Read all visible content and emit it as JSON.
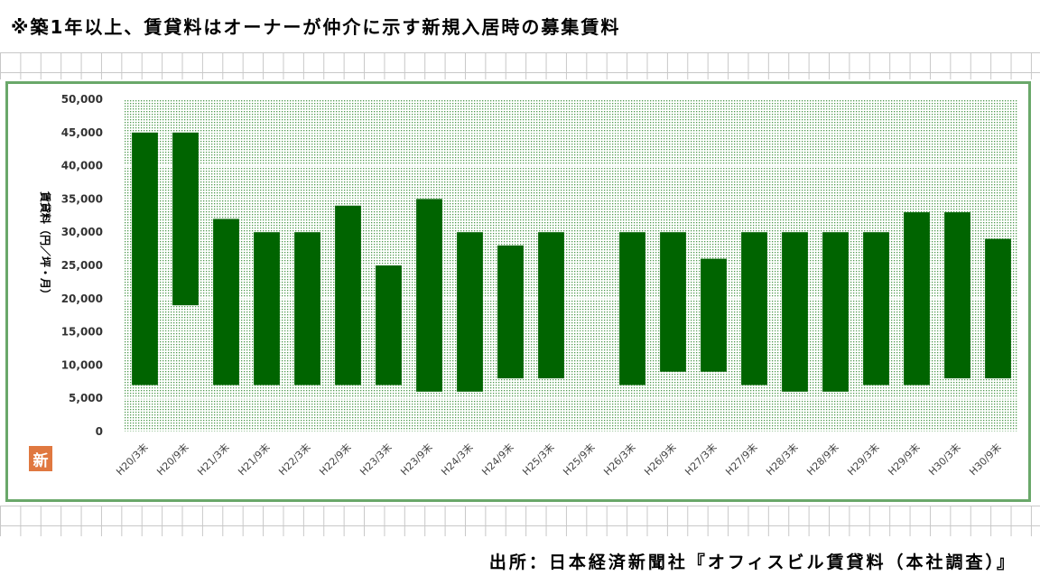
{
  "header": {
    "note": "※築1年以上、賃貸料はオーナーが仲介に示す新規入居時の募集賃料"
  },
  "footer": {
    "source": "出所：日本経済新聞社『オフィスビル賃貸料（本社調査）』"
  },
  "logo": {
    "text": "新"
  },
  "colors": {
    "bar": "#006400",
    "frame": "#6aa86a",
    "plot_dots": "#4f9a4f"
  },
  "chart_data": {
    "type": "bar",
    "subtype": "floating-range",
    "ylabel": "賃貸料（円／坪・月）",
    "ylim": [
      0,
      50000
    ],
    "yticks": [
      "0",
      "5,000",
      "10,000",
      "15,000",
      "20,000",
      "25,000",
      "30,000",
      "35,000",
      "40,000",
      "45,000",
      "50,000"
    ],
    "grid": true,
    "categories": [
      "H20/3末",
      "H20/9末",
      "H21/3末",
      "H21/9末",
      "H22/3末",
      "H22/9末",
      "H23/3末",
      "H23/9末",
      "H24/3末",
      "H24/9末",
      "H25/3末",
      "H25/9末",
      "H26/3末",
      "H26/9末",
      "H27/3末",
      "H27/9末",
      "H28/3末",
      "H28/9末",
      "H29/3末",
      "H29/9末",
      "H30/3末",
      "H30/9末"
    ],
    "series": [
      {
        "low": [
          7000,
          19000,
          7000,
          7000,
          7000,
          7000,
          7000,
          6000,
          6000,
          8000,
          8000,
          null,
          7000,
          9000,
          9000,
          7000,
          6000,
          6000,
          7000,
          7000,
          8000,
          8000
        ],
        "high": [
          45000,
          45000,
          32000,
          30000,
          30000,
          34000,
          25000,
          35000,
          30000,
          28000,
          30000,
          null,
          30000,
          30000,
          26000,
          30000,
          30000,
          30000,
          30000,
          33000,
          33000,
          29000
        ]
      }
    ]
  }
}
